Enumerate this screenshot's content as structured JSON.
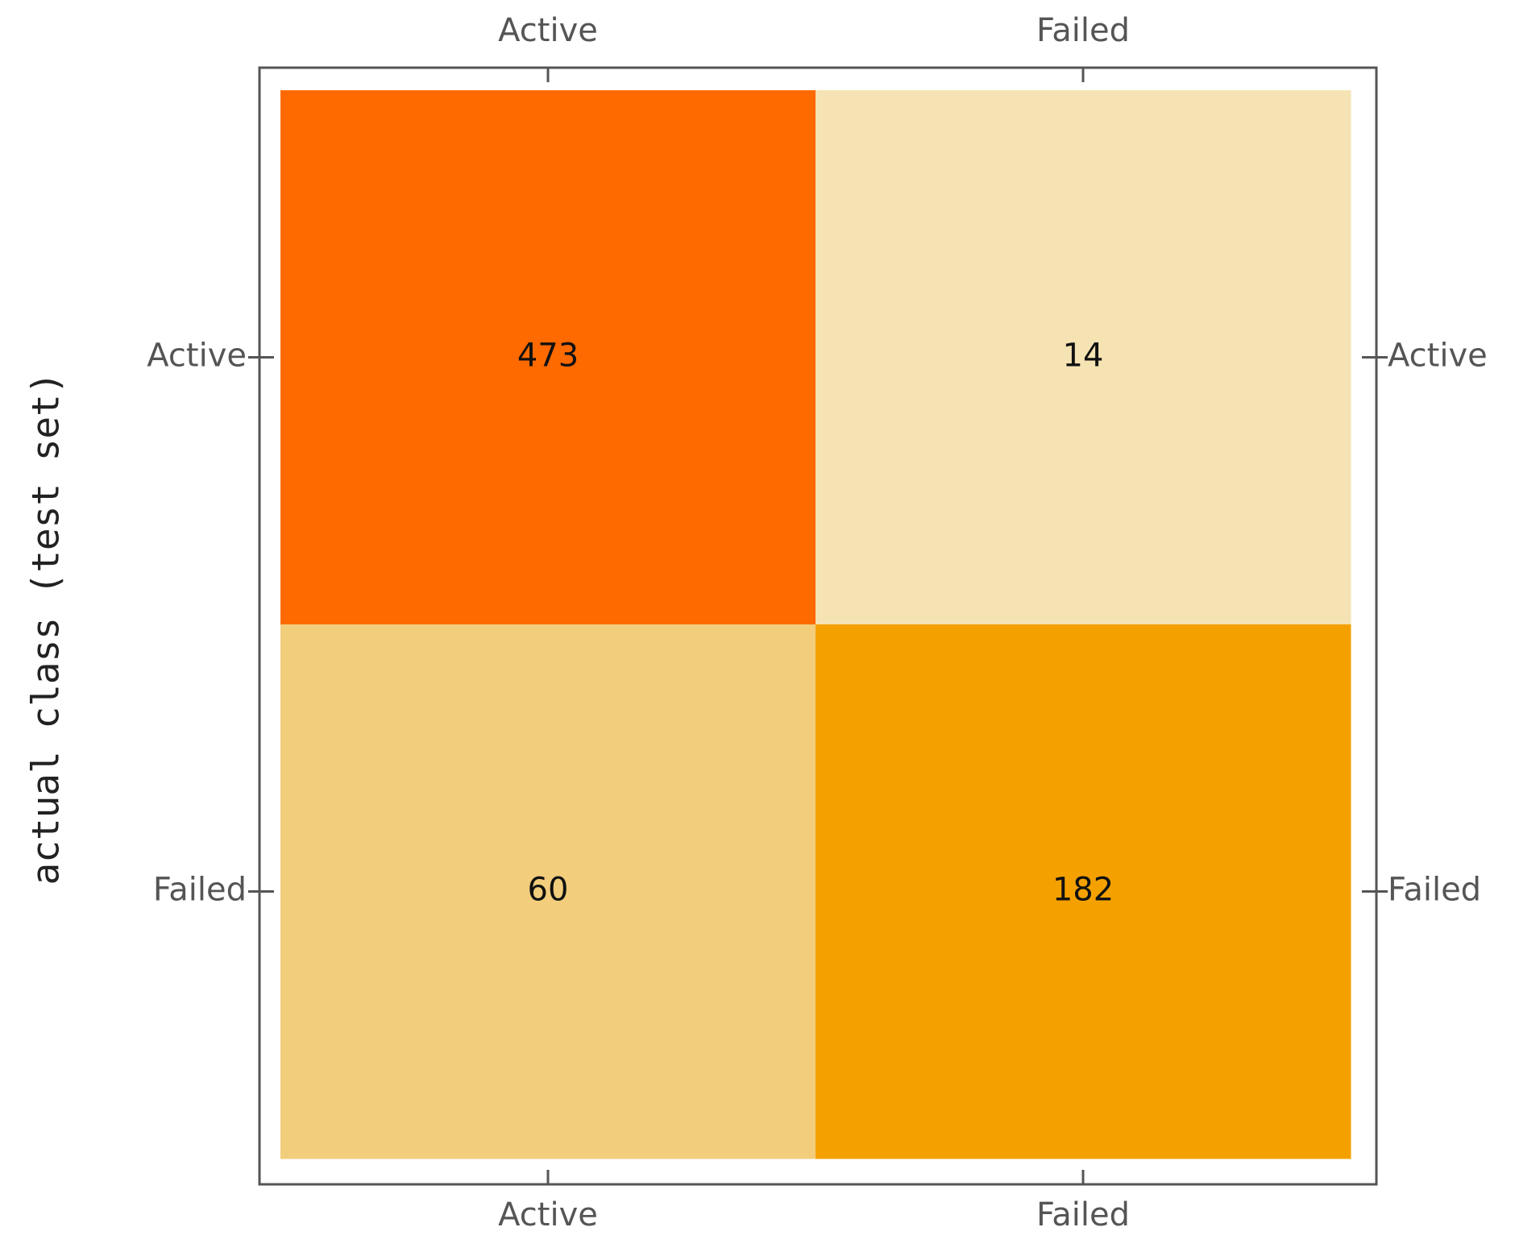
{
  "chart_data": {
    "type": "heatmap",
    "y_label": "actual class (test set)",
    "x_categories": [
      "Active",
      "Failed"
    ],
    "y_categories": [
      "Active",
      "Failed"
    ],
    "values": [
      [
        473,
        14
      ],
      [
        60,
        182
      ]
    ],
    "colors": [
      [
        "#ff6a00",
        "#f5e3b3"
      ],
      [
        "#f2cd7c",
        "#f4a100"
      ]
    ]
  }
}
